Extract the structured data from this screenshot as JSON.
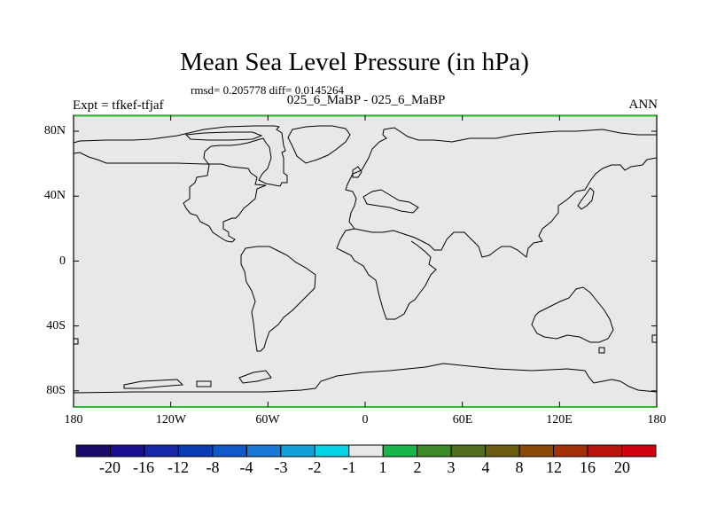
{
  "header": {
    "title": "Mean Sea Level Pressure (in hPa)",
    "stats": "rmsd= 0.205778 diff= 0.0145264",
    "subtitle": "025_6_MaBP - 025_6_MaBP",
    "left_label": "Expt = tfkef-tfjaf",
    "right_label": "ANN"
  },
  "map": {
    "background_color": "#e8e8e8",
    "coastline_color": "#000000",
    "frame_accent_color": "#2eb82e",
    "lat_ticks": [
      "80N",
      "40N",
      "0",
      "40S",
      "80S"
    ],
    "lon_ticks": [
      "180",
      "120W",
      "60W",
      "0",
      "60E",
      "120E",
      "180"
    ]
  },
  "colorbar": {
    "colors": [
      "#1a0a6b",
      "#1c0f8f",
      "#1628a8",
      "#0a3cb4",
      "#0f5ac8",
      "#1a78d7",
      "#11a0d8",
      "#06d2e6",
      "#e8e8e8",
      "#18b648",
      "#3c8a28",
      "#506e1e",
      "#6b5c10",
      "#8a4a08",
      "#a4300a",
      "#b8160c",
      "#d00010"
    ],
    "labels": [
      "-20",
      "-16",
      "-12",
      "-8",
      "-4",
      "-3",
      "-2",
      "-1",
      "1",
      "2",
      "3",
      "4",
      "8",
      "12",
      "16",
      "20"
    ]
  }
}
